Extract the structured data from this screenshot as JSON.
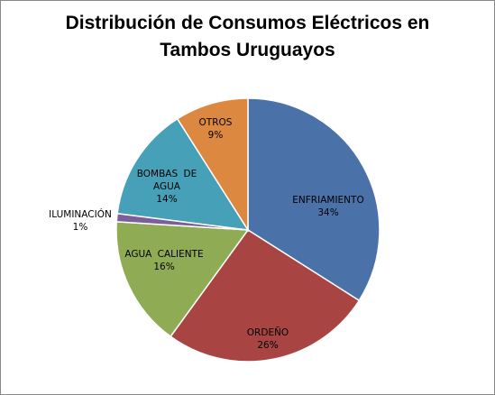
{
  "chart_data": {
    "type": "pie",
    "title": "Distribución de Consumos Eléctricos en Tambos Uruguayos",
    "categories": [
      "ENFRIAMIENTO",
      "ORDEÑO",
      "AGUA CALIENTE",
      "ILUMINACIÓN",
      "BOMBAS DE AGUA",
      "OTROS"
    ],
    "values": [
      34,
      26,
      16,
      1,
      14,
      9
    ],
    "value_labels": [
      "34%",
      "26%",
      "16%",
      "1%",
      "14%",
      "9%"
    ],
    "colors": [
      "#4a72a8",
      "#a84442",
      "#8fab54",
      "#7a5f9a",
      "#45a0b8",
      "#dd8840"
    ]
  }
}
